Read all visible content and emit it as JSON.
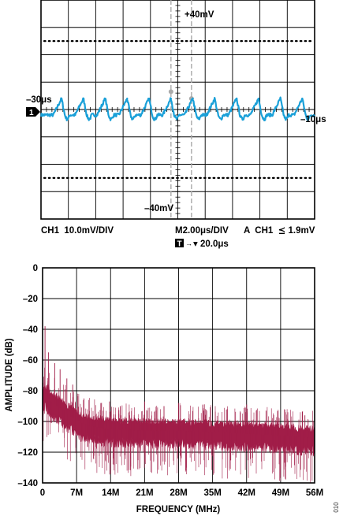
{
  "chart_data": [
    {
      "type": "line",
      "kind": "oscilloscope-capture",
      "divisions": {
        "x": 10,
        "y": 8
      },
      "grid": true,
      "channel_marker": "1",
      "cursor_labels": {
        "top": "+40mV",
        "bottom": "–40mV",
        "left": "–30μs",
        "right": "–10μs"
      },
      "readouts": {
        "ch1": "CH1  10.0mV/DIV",
        "timebase": "M2.00μs/DIV",
        "trigger": "A  CH1  ⪯ 1.9mV",
        "trigger_position": "▾ 20.0μs",
        "trigger_icon": "T"
      },
      "x_divisions_range": [
        0,
        10
      ],
      "y_divisions_range": [
        -4,
        4
      ],
      "pulse_period_div": 0.8,
      "peak_positions_div": [
        0.75,
        1.55,
        2.35,
        3.15,
        3.95,
        4.75,
        5.55,
        6.35,
        7.15,
        7.95,
        8.75,
        9.55
      ],
      "baseline_div": -0.2,
      "peak_amplitude_div": 0.6,
      "trace_color": "#1aa0d8",
      "cursor_color": "#aaaaaa"
    },
    {
      "type": "line",
      "kind": "fft-spectrum",
      "xlabel": "FREQUENCY (MHz)",
      "ylabel": "AMPLITUDE (dB)",
      "x_ticks": [
        "0",
        "7M",
        "14M",
        "21M",
        "28M",
        "35M",
        "42M",
        "49M",
        "56M"
      ],
      "x_tick_values": [
        0,
        7,
        14,
        21,
        28,
        35,
        42,
        49,
        56
      ],
      "xlim": [
        0,
        56
      ],
      "y_ticks": [
        "0",
        "–20",
        "–40",
        "–60",
        "–80",
        "–100",
        "–120",
        "–140"
      ],
      "y_tick_values": [
        0,
        -20,
        -40,
        -60,
        -80,
        -100,
        -120,
        -140
      ],
      "ylim": [
        -140,
        0
      ],
      "grid": true,
      "noise_floor_envelope": {
        "x": [
          0,
          0.5,
          1,
          2,
          3,
          4,
          5,
          6,
          7,
          8,
          10,
          14,
          21,
          28,
          35,
          42,
          49,
          56
        ],
        "y_center": [
          -86,
          -82,
          -84,
          -88,
          -90,
          -92,
          -95,
          -97,
          -99,
          -101,
          -103,
          -105,
          -106,
          -106,
          -107,
          -108,
          -109,
          -111
        ],
        "spread_db": 8
      },
      "spur_peaks": [
        {
          "x": 0.5,
          "y": -38
        },
        {
          "x": 1.2,
          "y": -55
        },
        {
          "x": 2.5,
          "y": -62
        },
        {
          "x": 3.6,
          "y": -66
        },
        {
          "x": 5.0,
          "y": -72
        },
        {
          "x": 6.2,
          "y": -76
        },
        {
          "x": 8.5,
          "y": -85
        },
        {
          "x": 12.0,
          "y": -88
        },
        {
          "x": 16.0,
          "y": -90
        },
        {
          "x": 21.0,
          "y": -87
        },
        {
          "x": 25.0,
          "y": -90
        },
        {
          "x": 28.0,
          "y": -88
        },
        {
          "x": 33.0,
          "y": -89
        },
        {
          "x": 38.0,
          "y": -92
        },
        {
          "x": 42.0,
          "y": -89
        },
        {
          "x": 46.0,
          "y": -93
        },
        {
          "x": 50.0,
          "y": -94
        },
        {
          "x": 54.0,
          "y": -96
        }
      ],
      "series_color": "#a11d48"
    }
  ],
  "figure_number": "010"
}
